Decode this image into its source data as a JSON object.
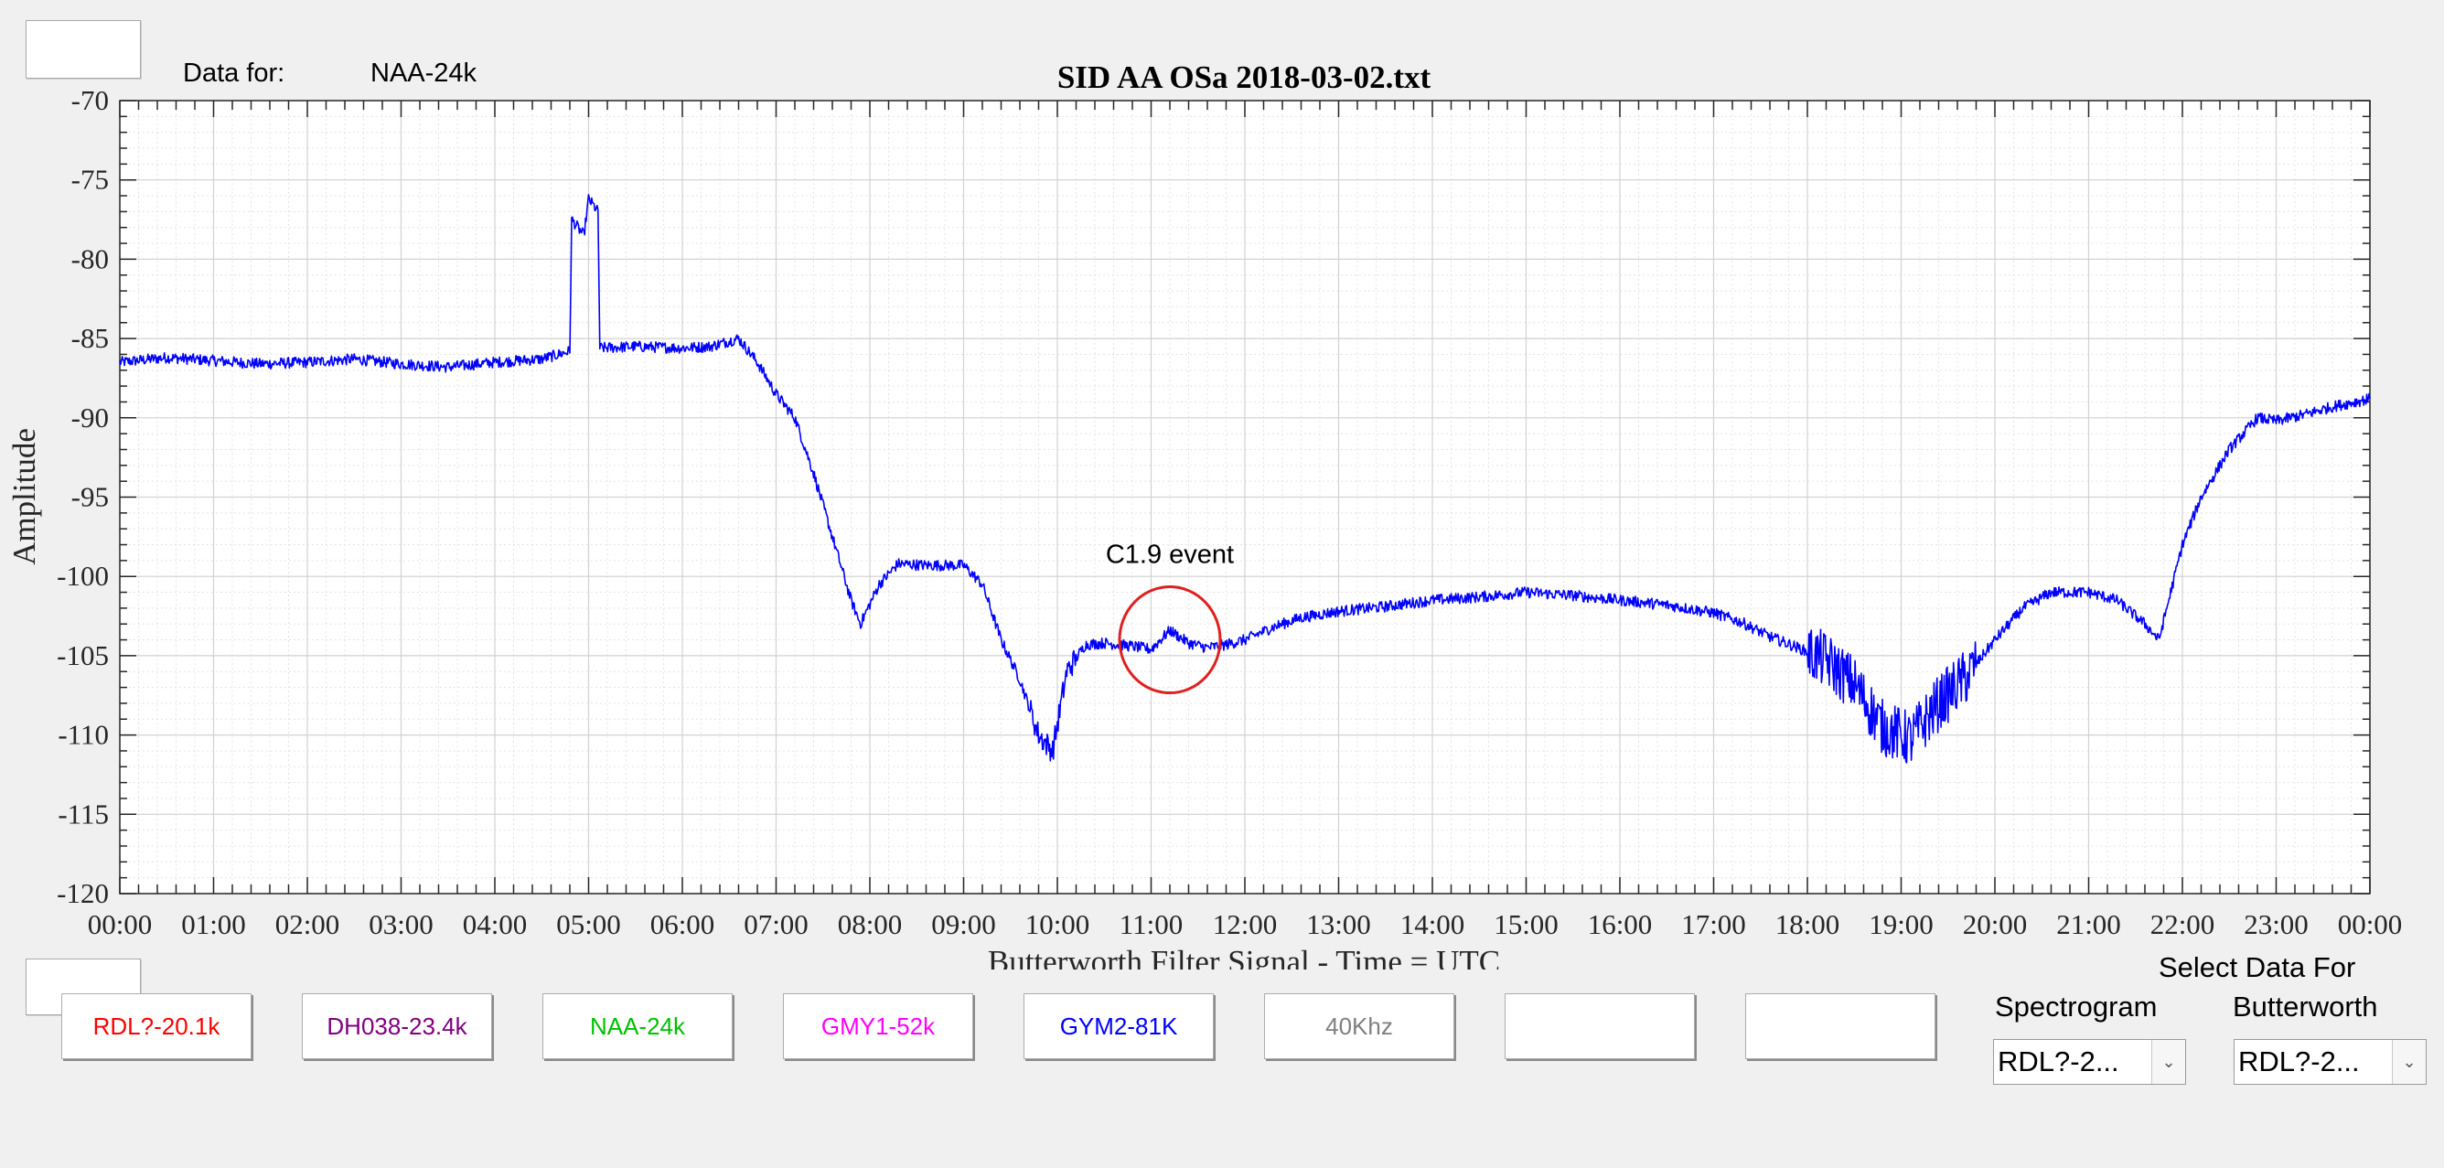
{
  "header": {
    "data_for_label": "Data for:",
    "data_for_value": "NAA-24k"
  },
  "chart_data": {
    "type": "line",
    "title": "SID AA OSa 2018-03-02.txt",
    "xlabel": "Butterworth Filter Signal - Time = UTC",
    "ylabel": "Amplitude",
    "xlim": [
      0,
      24
    ],
    "ylim": [
      -120,
      -70
    ],
    "x_ticks": [
      "00:00",
      "01:00",
      "02:00",
      "03:00",
      "04:00",
      "05:00",
      "06:00",
      "07:00",
      "08:00",
      "09:00",
      "10:00",
      "11:00",
      "12:00",
      "13:00",
      "14:00",
      "15:00",
      "16:00",
      "17:00",
      "18:00",
      "19:00",
      "20:00",
      "21:00",
      "22:00",
      "23:00",
      "00:00"
    ],
    "y_ticks": [
      -70,
      -75,
      -80,
      -85,
      -90,
      -95,
      -100,
      -105,
      -110,
      -115,
      -120
    ],
    "grid": true,
    "line_color": "#0000ff",
    "series": [
      {
        "x": [
          0,
          0.5,
          1,
          1.5,
          2,
          2.5,
          3,
          3.5,
          4,
          4.5,
          4.8,
          4.82,
          4.95,
          5.0,
          5.1,
          5.12,
          5.5,
          6,
          6.3,
          6.6,
          6.8,
          7,
          7.2,
          7.4,
          7.6,
          7.8,
          7.9,
          8.1,
          8.3,
          8.6,
          9,
          9.2,
          9.4,
          9.6,
          9.8,
          9.95,
          10.1,
          10.3,
          10.5,
          10.8,
          11.0,
          11.2,
          11.4,
          11.6,
          11.8,
          12,
          12.3,
          12.6,
          13,
          13.5,
          14,
          14.5,
          15,
          15.5,
          16,
          16.5,
          17,
          17.3,
          17.6,
          17.9,
          18.2,
          18.5,
          18.8,
          19.1,
          19.4,
          19.7,
          20,
          20.3,
          20.6,
          21,
          21.3,
          21.6,
          21.75,
          22,
          22.2,
          22.5,
          22.8,
          23,
          23.3,
          23.6,
          24
        ],
        "y": [
          -86.5,
          -86.2,
          -86.4,
          -86.6,
          -86.5,
          -86.3,
          -86.6,
          -86.8,
          -86.5,
          -86.3,
          -85.8,
          -77.5,
          -78.5,
          -76.2,
          -77.0,
          -85.6,
          -85.5,
          -85.6,
          -85.5,
          -85.0,
          -86.5,
          -88.5,
          -90.0,
          -93.5,
          -97.5,
          -101.5,
          -103.0,
          -100.5,
          -99.2,
          -99.3,
          -99.3,
          -100.5,
          -104.0,
          -106.5,
          -110.0,
          -111.0,
          -106.0,
          -104.3,
          -104.2,
          -104.4,
          -104.6,
          -103.4,
          -104.2,
          -104.5,
          -104.3,
          -104.0,
          -103.2,
          -102.6,
          -102.2,
          -101.9,
          -101.5,
          -101.3,
          -101.0,
          -101.2,
          -101.5,
          -101.8,
          -102.3,
          -102.9,
          -103.8,
          -104.5,
          -105.3,
          -106.8,
          -109.5,
          -110.3,
          -108.0,
          -106.3,
          -104.0,
          -102.0,
          -101.0,
          -101.0,
          -101.5,
          -103.0,
          -104.0,
          -98.0,
          -95.0,
          -92.0,
          -90.0,
          -90.2,
          -89.8,
          -89.3,
          -88.8
        ]
      }
    ],
    "annotation": {
      "text": "C1.9 event",
      "circle_center": [
        11.2,
        -104.0
      ],
      "circle_color": "#e02020"
    }
  },
  "channels": [
    {
      "label": "RDL?-20.1k",
      "color": "#ff0000"
    },
    {
      "label": "DH038-23.4k",
      "color": "#800080"
    },
    {
      "label": "NAA-24k",
      "color": "#00c000"
    },
    {
      "label": "GMY1-52k",
      "color": "#ff00ff"
    },
    {
      "label": "GYM2-81K",
      "color": "#0000ff"
    },
    {
      "label": "40Khz",
      "color": "#808080"
    },
    {
      "label": "",
      "color": "#000000"
    },
    {
      "label": "",
      "color": "#000000"
    }
  ],
  "select_section": {
    "title": "Select Data For",
    "spectrogram_label": "Spectrogram",
    "spectrogram_value": "RDL?-2...",
    "butterworth_label": "Butterworth",
    "butterworth_value": "RDL?-2..."
  }
}
